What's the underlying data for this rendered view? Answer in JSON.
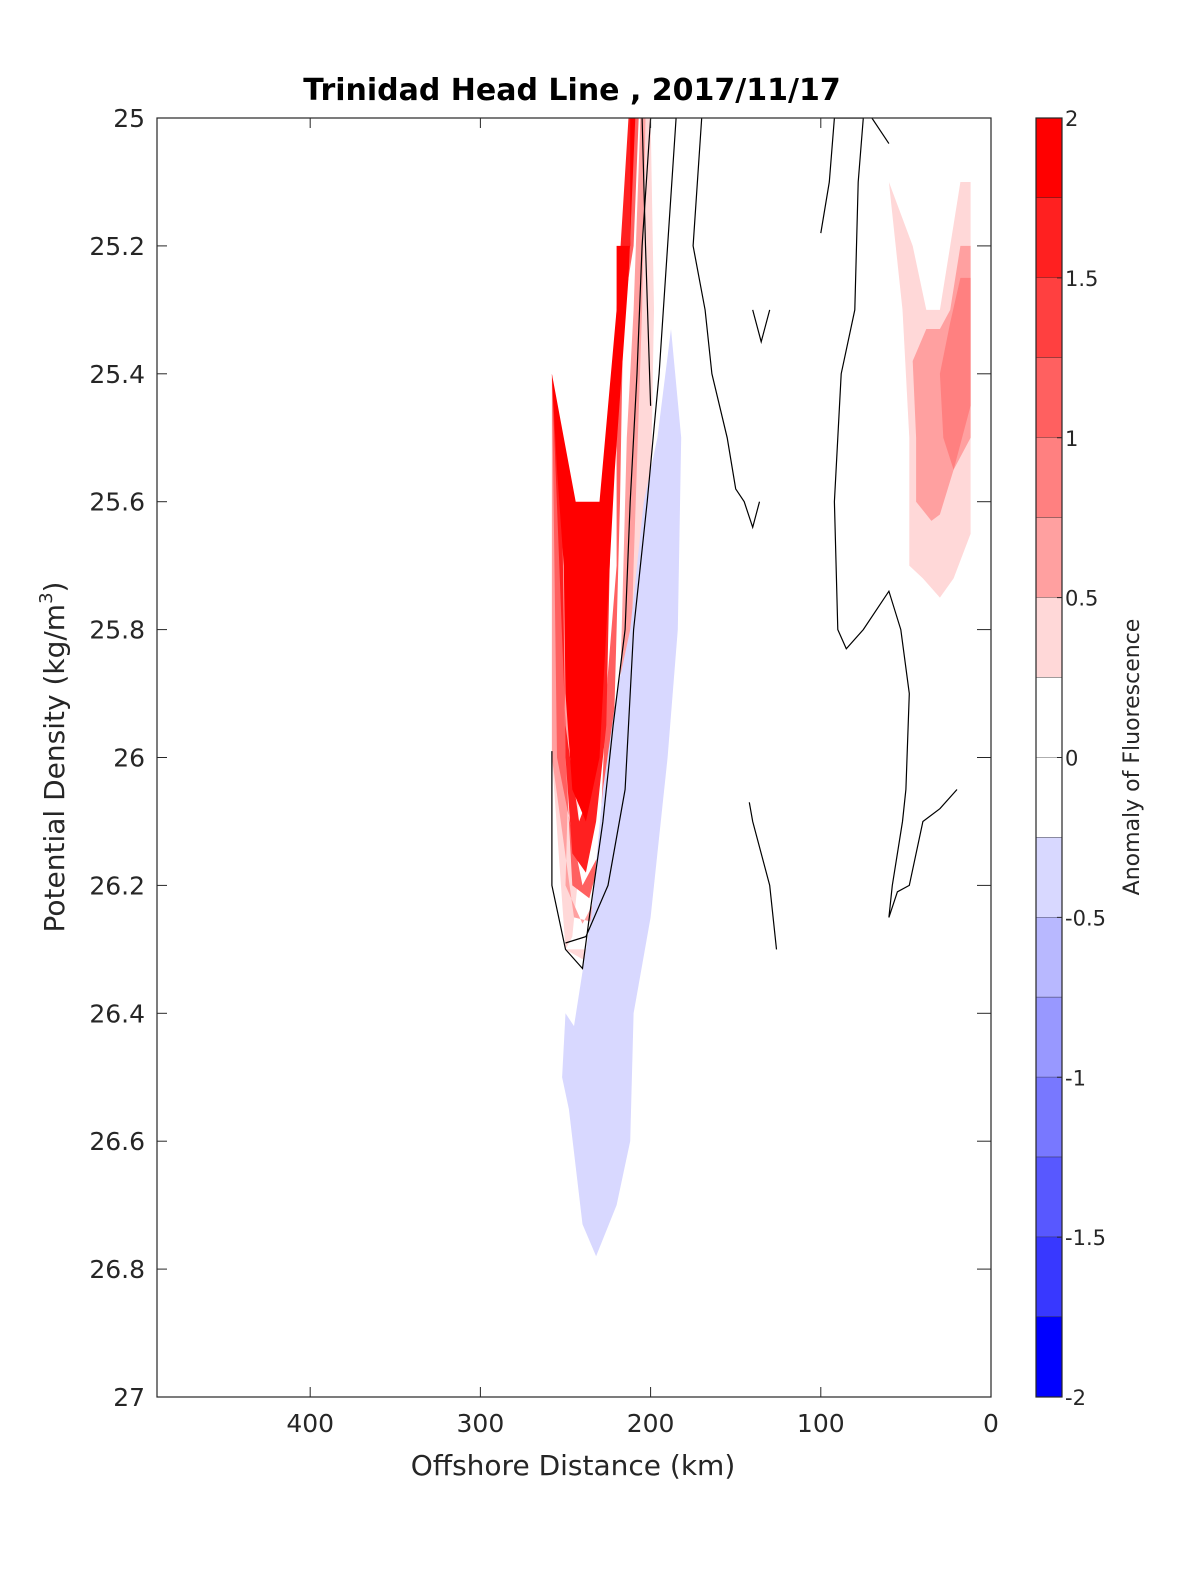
{
  "chart_data": {
    "type": "contourf",
    "title": "Trinidad Head Line , 2017/11/17",
    "xlabel": "Offshore Distance (km)",
    "ylabel": "Potential Density (kg/m",
    "ylabel_superscript": "3",
    "ylabel_suffix": ")",
    "xlim": [
      490,
      0
    ],
    "ylim": [
      25,
      27
    ],
    "y_reversed": true,
    "x_reversed": true,
    "grid": false,
    "xticks": [
      400,
      300,
      200,
      100,
      0
    ],
    "xtick_labels": [
      "400",
      "300",
      "200",
      "100",
      "0"
    ],
    "yticks": [
      25,
      25.2,
      25.4,
      25.6,
      25.8,
      26,
      26.2,
      26.4,
      26.6,
      26.8,
      27
    ],
    "ytick_labels": [
      "25",
      "25.2",
      "25.4",
      "25.6",
      "25.8",
      "26",
      "26.2",
      "26.4",
      "26.6",
      "26.8",
      "27"
    ],
    "colorbar": {
      "label": "Anomaly of Fluorescence",
      "range": [
        -2,
        2
      ],
      "ticks": [
        2,
        1.5,
        1,
        0.5,
        0,
        -0.5,
        -1,
        -1.5,
        -2
      ],
      "tick_labels": [
        "2",
        "1.5",
        "1",
        "0.5",
        "0",
        "-0.5",
        "-1",
        "-1.5",
        "-2"
      ],
      "levels": [
        {
          "from": 1.75,
          "to": 2.0,
          "color": "#ff0000"
        },
        {
          "from": 1.5,
          "to": 1.75,
          "color": "#ff2020"
        },
        {
          "from": 1.25,
          "to": 1.5,
          "color": "#ff4040"
        },
        {
          "from": 1.0,
          "to": 1.25,
          "color": "#ff6060"
        },
        {
          "from": 0.75,
          "to": 1.0,
          "color": "#ff8080"
        },
        {
          "from": 0.5,
          "to": 0.75,
          "color": "#ffa0a0"
        },
        {
          "from": 0.25,
          "to": 0.5,
          "color": "#ffd8d8"
        },
        {
          "from": 0.0,
          "to": 0.25,
          "color": "#ffffff"
        },
        {
          "from": -0.25,
          "to": 0.0,
          "color": "#ffffff"
        },
        {
          "from": -0.5,
          "to": -0.25,
          "color": "#d8d8ff"
        },
        {
          "from": -0.75,
          "to": -0.5,
          "color": "#b8b8ff"
        },
        {
          "from": -1.0,
          "to": -0.75,
          "color": "#9898ff"
        },
        {
          "from": -1.25,
          "to": -1.0,
          "color": "#7878ff"
        },
        {
          "from": -1.5,
          "to": -1.25,
          "color": "#5858ff"
        },
        {
          "from": -1.75,
          "to": -1.5,
          "color": "#3838ff"
        },
        {
          "from": -2.0,
          "to": -1.75,
          "color": "#0000ff"
        }
      ]
    },
    "filled_regions": [
      {
        "level": 0.25,
        "color": "#ffd8d8",
        "points": [
          [
            258,
            25.4
          ],
          [
            250,
            25.58
          ],
          [
            245,
            25.8
          ],
          [
            242,
            26.0
          ],
          [
            243,
            26.2
          ],
          [
            246,
            26.28
          ],
          [
            250,
            26.3
          ],
          [
            236,
            26.3
          ],
          [
            228,
            26.2
          ],
          [
            215,
            26.05
          ],
          [
            215,
            25.9
          ],
          [
            212,
            25.7
          ],
          [
            210,
            25.5
          ],
          [
            208,
            25.3
          ],
          [
            206,
            25.0
          ],
          [
            200,
            25.0
          ],
          [
            198,
            25.3
          ],
          [
            200,
            25.6
          ],
          [
            206,
            25.8
          ],
          [
            213,
            26.1
          ],
          [
            224,
            26.28
          ],
          [
            237,
            26.32
          ],
          [
            250,
            26.3
          ],
          [
            258,
            26.0
          ]
        ]
      },
      {
        "level": 0.5,
        "color": "#ffa0a0",
        "points": [
          [
            258,
            25.4
          ],
          [
            250,
            25.7
          ],
          [
            248,
            26.0
          ],
          [
            250,
            26.2
          ],
          [
            240,
            26.26
          ],
          [
            228,
            26.2
          ],
          [
            222,
            26.05
          ],
          [
            218,
            25.9
          ],
          [
            216,
            25.7
          ],
          [
            214,
            25.5
          ],
          [
            210,
            25.3
          ],
          [
            206,
            25.0
          ],
          [
            203,
            25.0
          ],
          [
            205,
            25.3
          ],
          [
            210,
            25.7
          ],
          [
            212,
            25.9
          ],
          [
            218,
            26.1
          ],
          [
            230,
            26.26
          ],
          [
            245,
            26.25
          ],
          [
            258,
            26.0
          ]
        ]
      },
      {
        "level": 1.0,
        "color": "#ff6060",
        "points": [
          [
            258,
            25.4
          ],
          [
            252,
            25.7
          ],
          [
            250,
            26.0
          ],
          [
            246,
            26.2
          ],
          [
            236,
            26.22
          ],
          [
            229,
            26.15
          ],
          [
            222,
            26.0
          ],
          [
            220,
            25.8
          ],
          [
            218,
            25.6
          ],
          [
            216,
            25.3
          ],
          [
            210,
            25.2
          ],
          [
            207,
            25.0
          ],
          [
            211,
            25.0
          ],
          [
            214,
            25.2
          ],
          [
            220,
            25.3
          ],
          [
            220,
            25.7
          ],
          [
            226,
            25.9
          ],
          [
            230,
            26.15
          ],
          [
            240,
            26.2
          ],
          [
            255,
            26.0
          ]
        ]
      },
      {
        "level": 1.5,
        "color": "#ff2020",
        "points": [
          [
            258,
            25.4
          ],
          [
            252,
            25.6
          ],
          [
            251,
            25.8
          ],
          [
            250,
            26.0
          ],
          [
            246,
            26.15
          ],
          [
            238,
            26.18
          ],
          [
            232,
            26.1
          ],
          [
            226,
            25.95
          ],
          [
            224,
            25.7
          ],
          [
            222,
            25.5
          ],
          [
            220,
            25.3
          ],
          [
            212,
            25.2
          ],
          [
            210,
            25.0
          ],
          [
            213,
            25.0
          ],
          [
            220,
            25.3
          ],
          [
            225,
            25.6
          ],
          [
            230,
            25.8
          ],
          [
            235,
            26.05
          ],
          [
            242,
            26.1
          ],
          [
            250,
            25.95
          ]
        ]
      },
      {
        "level": 1.75,
        "color": "#ff0000",
        "points": [
          [
            258,
            25.4
          ],
          [
            244,
            25.6
          ],
          [
            235,
            25.6
          ],
          [
            230,
            25.6
          ],
          [
            220,
            25.3
          ],
          [
            220,
            25.2
          ],
          [
            212,
            25.2
          ],
          [
            212,
            25.0
          ],
          [
            209,
            25.0
          ],
          [
            213,
            25.25
          ],
          [
            221,
            25.55
          ],
          [
            226,
            25.8
          ],
          [
            230,
            26.0
          ],
          [
            238,
            26.1
          ],
          [
            246,
            26.05
          ],
          [
            250,
            25.9
          ],
          [
            251,
            25.7
          ],
          [
            255,
            25.55
          ]
        ]
      },
      {
        "level": -0.25,
        "color": "#d8d8ff",
        "points": [
          [
            188,
            25.33
          ],
          [
            182,
            25.5
          ],
          [
            184,
            25.8
          ],
          [
            190,
            26.0
          ],
          [
            200,
            26.25
          ],
          [
            210,
            26.4
          ],
          [
            212,
            26.6
          ],
          [
            220,
            26.7
          ],
          [
            232,
            26.78
          ],
          [
            240,
            26.73
          ],
          [
            248,
            26.55
          ],
          [
            252,
            26.5
          ],
          [
            250,
            26.4
          ],
          [
            245,
            26.42
          ],
          [
            235,
            26.25
          ],
          [
            228,
            26.05
          ],
          [
            220,
            25.9
          ],
          [
            212,
            25.8
          ],
          [
            204,
            25.6
          ],
          [
            196,
            25.5
          ]
        ]
      },
      {
        "level": 0.25,
        "color": "#ffd8d8",
        "points": [
          [
            60,
            25.1
          ],
          [
            52,
            25.3
          ],
          [
            48,
            25.5
          ],
          [
            48,
            25.7
          ],
          [
            40,
            25.72
          ],
          [
            30,
            25.75
          ],
          [
            22,
            25.72
          ],
          [
            12,
            25.65
          ],
          [
            12,
            25.1
          ],
          [
            18,
            25.1
          ],
          [
            24,
            25.2
          ],
          [
            30,
            25.3
          ],
          [
            38,
            25.3
          ],
          [
            46,
            25.2
          ]
        ]
      },
      {
        "level": 0.5,
        "color": "#ffa0a0",
        "points": [
          [
            46,
            25.38
          ],
          [
            44,
            25.5
          ],
          [
            44,
            25.6
          ],
          [
            35,
            25.63
          ],
          [
            30,
            25.62
          ],
          [
            22,
            25.55
          ],
          [
            12,
            25.5
          ],
          [
            12,
            25.2
          ],
          [
            18,
            25.2
          ],
          [
            24,
            25.3
          ],
          [
            30,
            25.33
          ],
          [
            38,
            25.33
          ]
        ]
      },
      {
        "level": 0.75,
        "color": "#ff8080",
        "points": [
          [
            30,
            25.4
          ],
          [
            28,
            25.5
          ],
          [
            22,
            25.55
          ],
          [
            12,
            25.45
          ],
          [
            12,
            25.25
          ],
          [
            18,
            25.25
          ],
          [
            24,
            25.32
          ]
        ]
      }
    ],
    "contour_lines": [
      {
        "level": 0,
        "points": [
          [
            258,
            25.99
          ],
          [
            258,
            26.2
          ],
          [
            250,
            26.3
          ],
          [
            240,
            26.33
          ],
          [
            236,
            26.25
          ],
          [
            228,
            26.1
          ],
          [
            222,
            25.95
          ],
          [
            215,
            25.8
          ],
          [
            212,
            25.6
          ],
          [
            208,
            25.4
          ],
          [
            205,
            25.2
          ],
          [
            200,
            25.0
          ],
          [
            185,
            25.0
          ],
          [
            190,
            25.2
          ],
          [
            195,
            25.4
          ],
          [
            202,
            25.6
          ],
          [
            210,
            25.8
          ],
          [
            215,
            26.05
          ],
          [
            225,
            26.2
          ],
          [
            238,
            26.28
          ],
          [
            250,
            26.29
          ]
        ]
      },
      {
        "level": 0.1,
        "points": [
          [
            205,
            25.0
          ],
          [
            203,
            25.2
          ],
          [
            200,
            25.45
          ]
        ]
      },
      {
        "level": 0.1,
        "points": [
          [
            170,
            25.0
          ],
          [
            175,
            25.2
          ],
          [
            168,
            25.3
          ],
          [
            164,
            25.4
          ],
          [
            155,
            25.5
          ],
          [
            150,
            25.58
          ],
          [
            145,
            25.6
          ],
          [
            140,
            25.64
          ],
          [
            136,
            25.6
          ]
        ]
      },
      {
        "level": 0.1,
        "points": [
          [
            140,
            25.3
          ],
          [
            135,
            25.35
          ],
          [
            130,
            25.3
          ]
        ]
      },
      {
        "level": 0.1,
        "points": [
          [
            100,
            25.18
          ],
          [
            95,
            25.1
          ],
          [
            92,
            25.0
          ],
          [
            75,
            25.0
          ],
          [
            78,
            25.1
          ],
          [
            80,
            25.3
          ],
          [
            88,
            25.4
          ],
          [
            92,
            25.6
          ],
          [
            90,
            25.8
          ],
          [
            85,
            25.83
          ],
          [
            75,
            25.8
          ],
          [
            60,
            25.74
          ],
          [
            53,
            25.8
          ],
          [
            48,
            25.9
          ],
          [
            50,
            26.05
          ],
          [
            52,
            26.1
          ],
          [
            58,
            26.2
          ],
          [
            60,
            26.25
          ],
          [
            55,
            26.21
          ],
          [
            48,
            26.2
          ],
          [
            40,
            26.1
          ],
          [
            30,
            26.08
          ],
          [
            20,
            26.05
          ]
        ]
      },
      {
        "level": 0.1,
        "points": [
          [
            70,
            25.0
          ],
          [
            60,
            25.04
          ]
        ]
      },
      {
        "level": 0.1,
        "points": [
          [
            142,
            26.07
          ],
          [
            140,
            26.1
          ],
          [
            130,
            26.2
          ],
          [
            126,
            26.3
          ]
        ]
      }
    ]
  }
}
